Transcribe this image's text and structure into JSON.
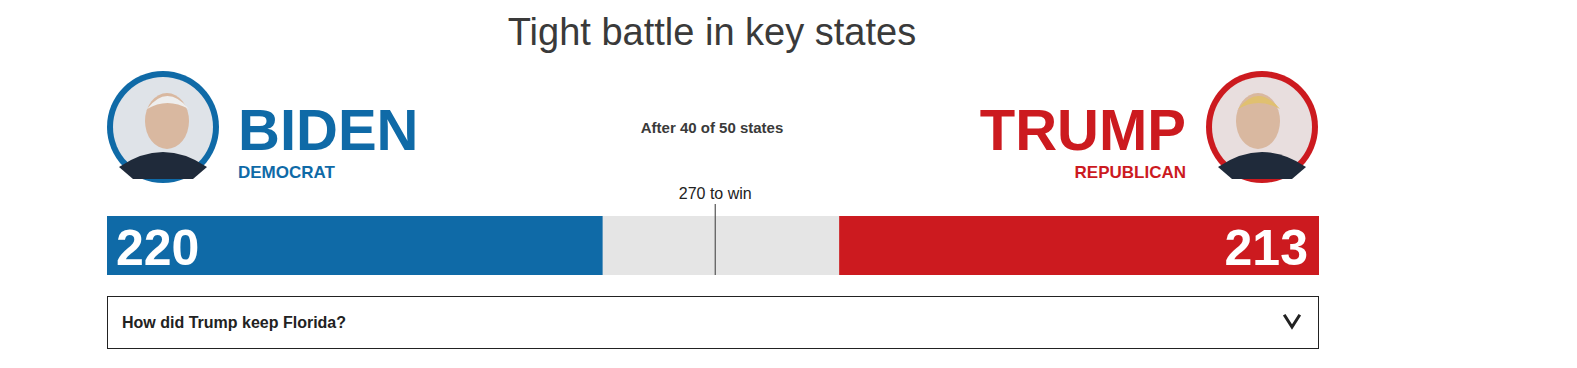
{
  "chart_data": {
    "type": "bar",
    "orientation": "horizontal",
    "stacked": true,
    "title": "Tight battle in key states",
    "subtitle": "After 40 of 50 states",
    "categories": [
      "BIDEN",
      "TRUMP"
    ],
    "parties": [
      "DEMOCRAT",
      "REPUBLICAN"
    ],
    "values": [
      220,
      213
    ],
    "colors": [
      "#0f6aa7",
      "#cc1a1f"
    ],
    "xlim": [
      0,
      538
    ],
    "data_labels": true,
    "tick_labels": false,
    "annotations": [
      {
        "value": 270,
        "label": "270 to win"
      }
    ],
    "footer": "How did Trump keep Florida?"
  }
}
